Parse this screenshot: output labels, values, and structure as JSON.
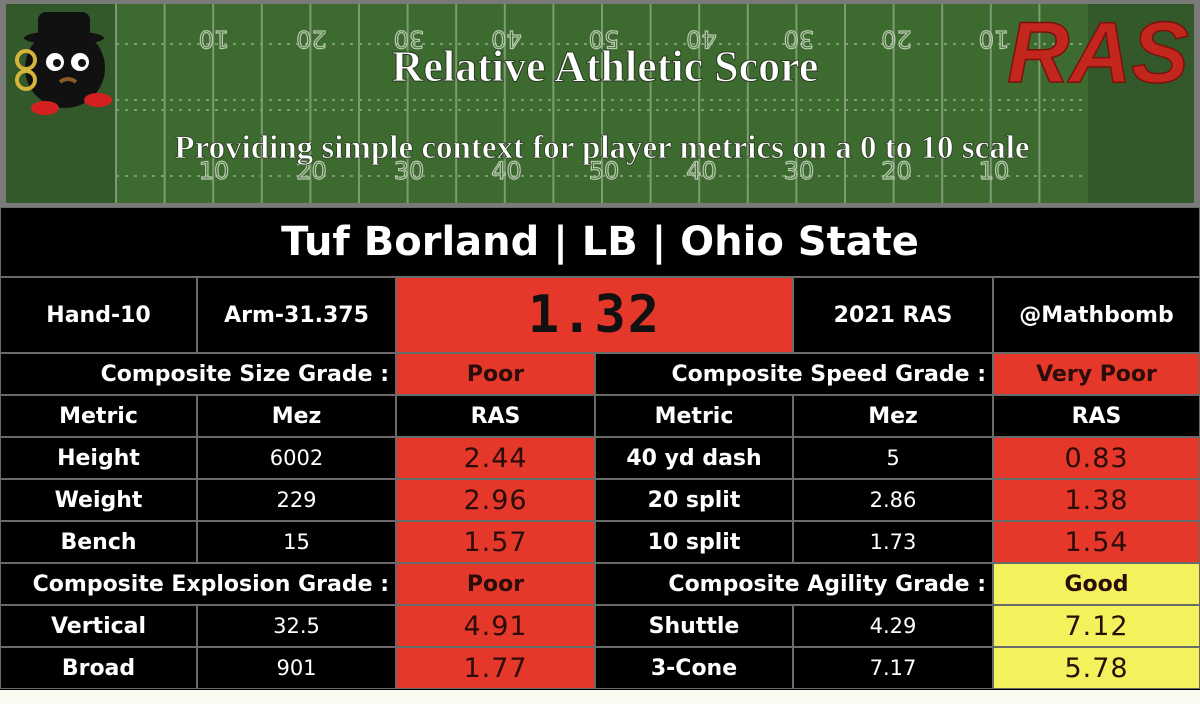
{
  "header": {
    "title": "Relative Athletic Score",
    "subtitle": "Providing simple context for player metrics on a 0 to 10 scale",
    "logo": "RAS",
    "yard_numbers": [
      "10",
      "20",
      "30",
      "40",
      "50",
      "40",
      "30",
      "20",
      "10"
    ]
  },
  "player": "Tuf Borland | LB | Ohio State",
  "summary": {
    "hand": "Hand-10",
    "arm": "Arm-31.375",
    "ras": 1.32,
    "ras_color": "#e5382b",
    "year": "2021 RAS",
    "handle": "@Mathbomb"
  },
  "column_headers": [
    "Metric",
    "Mez",
    "RAS"
  ],
  "sections": [
    {
      "left": {
        "label": "Composite Size Grade :",
        "grade": "Poor",
        "color": "#e5382b"
      },
      "right": {
        "label": "Composite Speed Grade :",
        "grade": "Very Poor",
        "color": "#e5382b"
      },
      "rows": [
        {
          "left": {
            "metric": "Height",
            "mez": 6002,
            "ras": 2.44,
            "color": "#e5382b"
          },
          "right": {
            "metric": "40 yd dash",
            "mez": 5,
            "ras": 0.83,
            "color": "#e5382b"
          }
        },
        {
          "left": {
            "metric": "Weight",
            "mez": 229,
            "ras": 2.96,
            "color": "#e5382b"
          },
          "right": {
            "metric": "20 split",
            "mez": 2.86,
            "ras": 1.38,
            "color": "#e5382b"
          }
        },
        {
          "left": {
            "metric": "Bench",
            "mez": 15,
            "ras": 1.57,
            "color": "#e5382b"
          },
          "right": {
            "metric": "10 split",
            "mez": 1.73,
            "ras": 1.54,
            "color": "#e5382b"
          }
        }
      ]
    },
    {
      "left": {
        "label": "Composite Explosion Grade :",
        "grade": "Poor",
        "color": "#e5382b"
      },
      "right": {
        "label": "Composite Agility Grade :",
        "grade": "Good",
        "color": "#f4f25c"
      },
      "rows": [
        {
          "left": {
            "metric": "Vertical",
            "mez": 32.5,
            "ras": 4.91,
            "color": "#e5382b"
          },
          "right": {
            "metric": "Shuttle",
            "mez": 4.29,
            "ras": 7.12,
            "color": "#f4f25c"
          }
        },
        {
          "left": {
            "metric": "Broad",
            "mez": 901,
            "ras": 1.77,
            "color": "#e5382b"
          },
          "right": {
            "metric": "3-Cone",
            "mez": 7.17,
            "ras": 5.78,
            "color": "#f4f25c"
          }
        }
      ]
    }
  ]
}
